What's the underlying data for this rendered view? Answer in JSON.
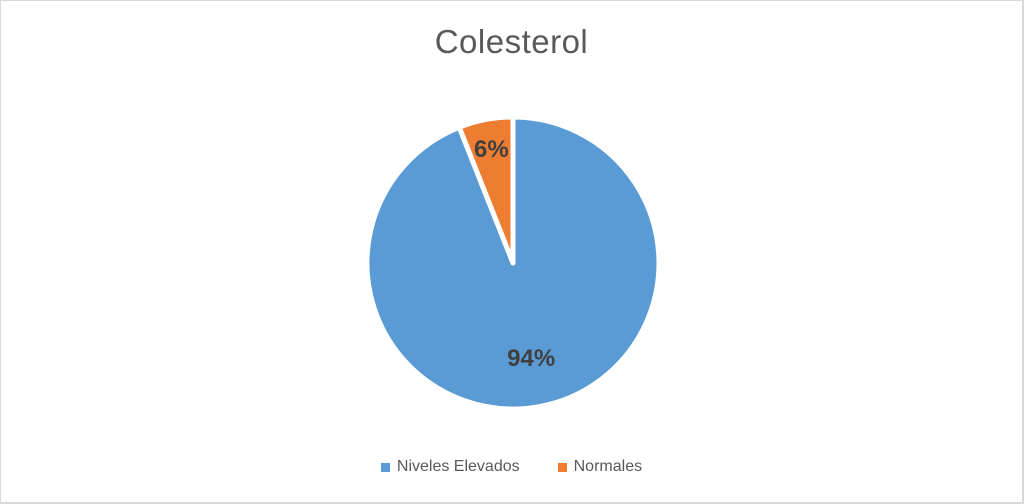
{
  "chart_data": {
    "type": "pie",
    "title": "Colesterol",
    "start_angle_deg": 0,
    "direction": "clockwise",
    "slices": [
      {
        "label": "Niveles Elevados",
        "value": 94,
        "data_label": "94%",
        "color": "#5B9BD5"
      },
      {
        "label": "Normales",
        "value": 6,
        "data_label": "6%",
        "color": "#ED7D31"
      }
    ],
    "slice_border_color": "#FFFFFF",
    "data_label_color": "#404040",
    "title_color": "#595959",
    "legend_text_color": "#595959",
    "legend_position": "bottom",
    "background_color": "#FFFFFF",
    "frame_border_color": "#D9D9D9"
  }
}
